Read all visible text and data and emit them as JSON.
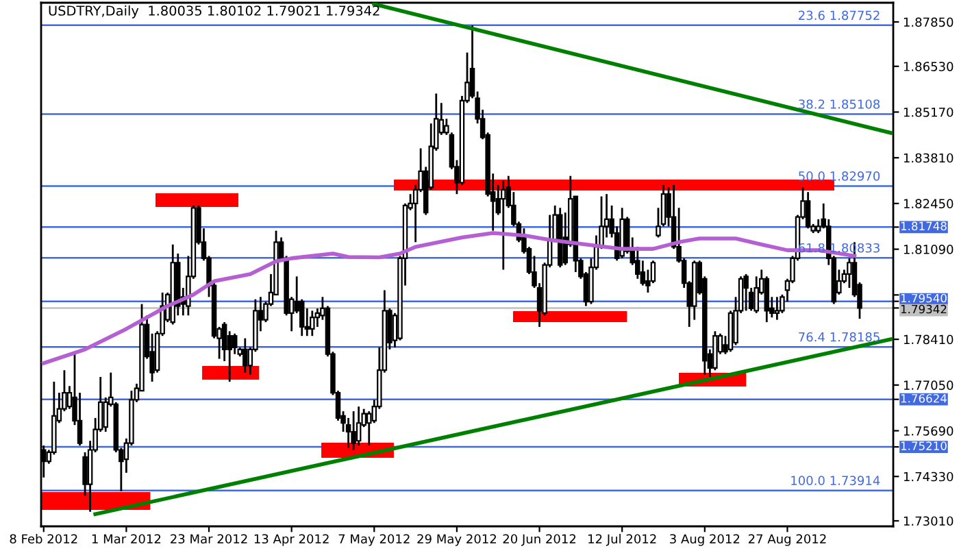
{
  "chart_data": {
    "type": "candlestick",
    "title": "USDTRY,Daily  1.80035 1.80102 1.79021 1.79342",
    "categories": [
      "8 Feb 2012",
      null,
      null,
      null,
      null,
      null,
      null,
      null,
      null,
      null,
      null,
      null,
      null,
      null,
      null,
      null,
      "1 Mar 2012",
      null,
      null,
      null,
      null,
      null,
      null,
      null,
      null,
      null,
      null,
      null,
      null,
      null,
      null,
      null,
      "23 Mar 2012",
      null,
      null,
      null,
      null,
      null,
      null,
      null,
      null,
      null,
      null,
      null,
      null,
      null,
      null,
      null,
      "13 Apr 2012",
      null,
      null,
      null,
      null,
      null,
      null,
      null,
      null,
      null,
      null,
      null,
      null,
      null,
      null,
      null,
      "7 May 2012",
      null,
      null,
      null,
      null,
      null,
      null,
      null,
      null,
      null,
      null,
      null,
      null,
      null,
      null,
      null,
      "29 May 2012",
      null,
      null,
      null,
      null,
      null,
      null,
      null,
      null,
      null,
      null,
      null,
      null,
      null,
      null,
      null,
      "20 Jun 2012",
      null,
      null,
      null,
      null,
      null,
      null,
      null,
      null,
      null,
      null,
      null,
      null,
      null,
      null,
      null,
      "12 Jul 2012",
      null,
      null,
      null,
      null,
      null,
      null,
      null,
      null,
      null,
      null,
      null,
      null,
      null,
      null,
      null,
      "3 Aug 2012",
      null,
      null,
      null,
      null,
      null,
      null,
      null,
      null,
      null,
      null,
      null,
      null,
      null,
      null,
      null,
      "27 Aug 2012",
      null,
      null,
      null,
      null,
      null,
      null,
      null,
      null,
      null,
      null,
      null,
      null,
      null,
      null,
      null,
      null,
      null,
      null,
      null,
      null
    ],
    "ohlc": [
      [
        1.7512,
        1.7525,
        1.743,
        1.7478
      ],
      [
        1.7478,
        1.7512,
        1.7471,
        1.7505
      ],
      [
        1.7505,
        1.7715,
        1.7498,
        1.7613
      ],
      [
        1.7599,
        1.7682,
        1.7592,
        1.7634
      ],
      [
        1.7634,
        1.7749,
        1.7627,
        1.7682
      ],
      [
        1.7641,
        1.7702,
        1.7634,
        1.7682
      ],
      [
        1.7668,
        1.7804,
        1.7586,
        1.7599
      ],
      [
        1.7599,
        1.7682,
        1.7525,
        1.7532
      ],
      [
        1.7491,
        1.7505,
        1.7376,
        1.741
      ],
      [
        1.741,
        1.7539,
        1.7328,
        1.7512
      ],
      [
        1.7512,
        1.7607,
        1.7505,
        1.7573
      ],
      [
        1.7573,
        1.7729,
        1.7566,
        1.7654
      ],
      [
        1.758,
        1.7668,
        1.7566,
        1.7654
      ],
      [
        1.7648,
        1.7742,
        1.7641,
        1.7668
      ],
      [
        1.7648,
        1.7654,
        1.7505,
        1.7512
      ],
      [
        1.7512,
        1.7518,
        1.7389,
        1.7478
      ],
      [
        1.7484,
        1.7546,
        1.7444,
        1.7532
      ],
      [
        1.7532,
        1.7688,
        1.7525,
        1.7661
      ],
      [
        1.7661,
        1.7709,
        1.7654,
        1.7695
      ],
      [
        1.7688,
        1.7946,
        1.7688,
        1.7885
      ],
      [
        1.7885,
        1.7912,
        1.7783,
        1.779
      ],
      [
        1.7804,
        1.7858,
        1.7715,
        1.7742
      ],
      [
        1.7749,
        1.7865,
        1.7742,
        1.7858
      ],
      [
        1.7858,
        1.798,
        1.7851,
        1.794
      ],
      [
        1.7899,
        1.798,
        1.7892,
        1.7974
      ],
      [
        1.7892,
        1.8123,
        1.7885,
        1.8069
      ],
      [
        1.8069,
        1.8096,
        1.7912,
        1.794
      ],
      [
        1.7967,
        1.7994,
        1.7912,
        1.7946
      ],
      [
        1.794,
        1.8089,
        1.7912,
        1.8028
      ],
      [
        1.8028,
        1.8239,
        1.8021,
        1.8232
      ],
      [
        1.8232,
        1.8239,
        1.8123,
        1.813
      ],
      [
        1.813,
        1.8171,
        1.8075,
        1.8082
      ],
      [
        1.8082,
        1.8089,
        1.7967,
        1.8001
      ],
      [
        1.8001,
        1.8008,
        1.7844,
        1.7851
      ],
      [
        1.7844,
        1.7878,
        1.7783,
        1.7872
      ],
      [
        1.7885,
        1.7892,
        1.7776,
        1.7811
      ],
      [
        1.7851,
        1.7865,
        1.7715,
        1.7811
      ],
      [
        1.7851,
        1.7858,
        1.7797,
        1.7817
      ],
      [
        1.7797,
        1.7817,
        1.779,
        1.7811
      ],
      [
        1.7811,
        1.7844,
        1.7742,
        1.7763
      ],
      [
        1.7763,
        1.7817,
        1.7736,
        1.7811
      ],
      [
        1.7811,
        1.796,
        1.7804,
        1.7926
      ],
      [
        1.7926,
        1.7967,
        1.7865,
        1.7899
      ],
      [
        1.7899,
        1.7953,
        1.7892,
        1.7946
      ],
      [
        1.7946,
        1.8035,
        1.794,
        1.798
      ],
      [
        1.7974,
        1.8164,
        1.7974,
        1.813
      ],
      [
        1.813,
        1.8144,
        1.8075,
        1.8082
      ],
      [
        1.8075,
        1.8089,
        1.7912,
        1.7919
      ],
      [
        1.7919,
        1.7967,
        1.7865,
        1.796
      ],
      [
        1.7953,
        1.8028,
        1.7919,
        1.7926
      ],
      [
        1.7953,
        1.796,
        1.7851,
        1.7878
      ],
      [
        1.7878,
        1.7933,
        1.7851,
        1.7872
      ],
      [
        1.7872,
        1.7926,
        1.7851,
        1.7906
      ],
      [
        1.7906,
        1.7933,
        1.7878,
        1.7919
      ],
      [
        1.7912,
        1.7967,
        1.7899,
        1.7933
      ],
      [
        1.7933,
        1.794,
        1.779,
        1.7797
      ],
      [
        1.7797,
        1.7804,
        1.7675,
        1.7682
      ],
      [
        1.7682,
        1.7688,
        1.7599,
        1.7607
      ],
      [
        1.7613,
        1.7627,
        1.7566,
        1.7592
      ],
      [
        1.7586,
        1.7607,
        1.7518,
        1.7566
      ],
      [
        1.7566,
        1.7627,
        1.7512,
        1.7532
      ],
      [
        1.7539,
        1.7641,
        1.7525,
        1.7592
      ],
      [
        1.7586,
        1.7634,
        1.758,
        1.762
      ],
      [
        1.7592,
        1.7627,
        1.7525,
        1.762
      ],
      [
        1.7599,
        1.7661,
        1.7592,
        1.7641
      ],
      [
        1.7641,
        1.7817,
        1.7634,
        1.7749
      ],
      [
        1.7749,
        1.7987,
        1.7742,
        1.7926
      ],
      [
        1.7926,
        1.7933,
        1.7811,
        1.7831
      ],
      [
        1.7838,
        1.7919,
        1.7817,
        1.7912
      ],
      [
        1.7844,
        1.8089,
        1.7838,
        1.8082
      ],
      [
        1.8082,
        1.8245,
        1.8001,
        1.8239
      ],
      [
        1.8232,
        1.8273,
        1.8225,
        1.8245
      ],
      [
        1.8245,
        1.83,
        1.813,
        1.8286
      ],
      [
        1.8286,
        1.8409,
        1.8279,
        1.8341
      ],
      [
        1.8341,
        1.8354,
        1.8211,
        1.8218
      ],
      [
        1.8293,
        1.8483,
        1.8286,
        1.8415
      ],
      [
        1.8409,
        1.8572,
        1.8402,
        1.8497
      ],
      [
        1.8456,
        1.8544,
        1.8449,
        1.8494
      ],
      [
        1.8456,
        1.8497,
        1.8449,
        1.8476
      ],
      [
        1.8449,
        1.8456,
        1.8347,
        1.8354
      ],
      [
        1.8354,
        1.8374,
        1.8273,
        1.8307
      ],
      [
        1.8307,
        1.8565,
        1.83,
        1.8551
      ],
      [
        1.8551,
        1.8694,
        1.8544,
        1.8605
      ],
      [
        1.8646,
        1.8775,
        1.8558,
        1.8565
      ],
      [
        1.8558,
        1.8578,
        1.8483,
        1.8497
      ],
      [
        1.8497,
        1.8524,
        1.8436,
        1.8442
      ],
      [
        1.8449,
        1.8456,
        1.8266,
        1.8273
      ],
      [
        1.8279,
        1.8334,
        1.8164,
        1.8252
      ],
      [
        1.8259,
        1.83,
        1.8211,
        1.8218
      ],
      [
        1.8259,
        1.8313,
        1.8048,
        1.8286
      ],
      [
        1.8293,
        1.8327,
        1.8232,
        1.8239
      ],
      [
        1.8239,
        1.8279,
        1.8177,
        1.8184
      ],
      [
        1.8184,
        1.8191,
        1.813,
        1.8137
      ],
      [
        1.8144,
        1.8171,
        1.8096,
        1.8103
      ],
      [
        1.811,
        1.8116,
        1.8035,
        1.8041
      ],
      [
        1.8041,
        1.8089,
        1.7994,
        1.8001
      ],
      [
        1.7994,
        1.8008,
        1.7878,
        1.7926
      ],
      [
        1.7919,
        1.8069,
        1.7912,
        1.8062
      ],
      [
        1.8062,
        1.8211,
        1.8055,
        1.8137
      ],
      [
        1.8137,
        1.8239,
        1.813,
        1.8211
      ],
      [
        1.8211,
        1.8232,
        1.8055,
        1.8062
      ],
      [
        1.8144,
        1.8218,
        1.8062,
        1.8069
      ],
      [
        1.8123,
        1.8327,
        1.8116,
        1.8259
      ],
      [
        1.8266,
        1.8266,
        1.8041,
        1.8075
      ],
      [
        1.8075,
        1.8082,
        1.8021,
        1.8028
      ],
      [
        1.8035,
        1.8041,
        1.794,
        1.7953
      ],
      [
        1.7953,
        1.8082,
        1.7946,
        1.8055
      ],
      [
        1.8055,
        1.815,
        1.8048,
        1.8116
      ],
      [
        1.8116,
        1.8266,
        1.811,
        1.8177
      ],
      [
        1.8177,
        1.8273,
        1.8144,
        1.8198
      ],
      [
        1.8198,
        1.8239,
        1.8144,
        1.8157
      ],
      [
        1.8157,
        1.8177,
        1.8075,
        1.8082
      ],
      [
        1.8089,
        1.8232,
        1.8082,
        1.8198
      ],
      [
        1.8198,
        1.8205,
        1.8096,
        1.8103
      ],
      [
        1.811,
        1.8144,
        1.8062,
        1.8069
      ],
      [
        1.8075,
        1.8116,
        1.8021,
        1.8035
      ],
      [
        1.8041,
        1.8075,
        1.8001,
        1.8008
      ],
      [
        1.8014,
        1.8048,
        1.798,
        1.8001
      ],
      [
        1.8014,
        1.8075,
        1.8008,
        1.8069
      ],
      [
        1.815,
        1.8232,
        1.8144,
        1.8177
      ],
      [
        1.8184,
        1.83,
        1.8177,
        1.8273
      ],
      [
        1.8273,
        1.8293,
        1.8177,
        1.8205
      ],
      [
        1.8205,
        1.83,
        1.811,
        1.8116
      ],
      [
        1.8116,
        1.8232,
        1.8069,
        1.8075
      ],
      [
        1.8075,
        1.8082,
        1.7994,
        1.8008
      ],
      [
        1.8008,
        1.8014,
        1.7878,
        1.794
      ],
      [
        1.794,
        1.8075,
        1.7899,
        1.8069
      ],
      [
        1.8069,
        1.8075,
        1.7974,
        1.798
      ],
      [
        1.8021,
        1.8028,
        1.7736,
        1.7777
      ],
      [
        1.7797,
        1.7811,
        1.7729,
        1.7756
      ],
      [
        1.7756,
        1.7865,
        1.7749,
        1.7851
      ],
      [
        1.7804,
        1.7858,
        1.7797,
        1.7851
      ],
      [
        1.7824,
        1.7851,
        1.7797,
        1.7804
      ],
      [
        1.7811,
        1.7926,
        1.7804,
        1.7919
      ],
      [
        1.7831,
        1.7967,
        1.7824,
        1.7926
      ],
      [
        1.7926,
        1.8028,
        1.7919,
        1.8021
      ],
      [
        1.8028,
        1.8035,
        1.7926,
        1.7994
      ],
      [
        1.798,
        1.7994,
        1.7926,
        1.7933
      ],
      [
        1.7926,
        1.8028,
        1.7919,
        1.7994
      ],
      [
        1.798,
        1.8048,
        1.7974,
        1.8021
      ],
      [
        1.8021,
        1.8028,
        1.7892,
        1.7926
      ],
      [
        1.7933,
        1.7967,
        1.7906,
        1.7919
      ],
      [
        1.7919,
        1.7967,
        1.7899,
        1.7926
      ],
      [
        1.7926,
        1.7974,
        1.7919,
        1.7967
      ],
      [
        1.7987,
        1.8021,
        1.7953,
        1.8014
      ],
      [
        1.8014,
        1.8089,
        1.8008,
        1.8082
      ],
      [
        1.8082,
        1.8211,
        1.8075,
        1.8205
      ],
      [
        1.8205,
        1.8293,
        1.8198,
        1.8252
      ],
      [
        1.8252,
        1.8279,
        1.8171,
        1.8177
      ],
      [
        1.8164,
        1.8184,
        1.8157,
        1.8177
      ],
      [
        1.8164,
        1.8198,
        1.8157,
        1.8177
      ],
      [
        1.8198,
        1.8245,
        1.8171,
        1.8177
      ],
      [
        1.8177,
        1.8198,
        1.8062,
        1.8082
      ],
      [
        1.8082,
        1.8089,
        1.7946,
        1.7953
      ],
      [
        1.798,
        1.8048,
        1.7974,
        1.8014
      ],
      [
        1.8014,
        1.8048,
        1.8008,
        1.8035
      ],
      [
        1.8035,
        1.8082,
        1.7994,
        1.8069
      ],
      [
        1.8069,
        1.813,
        1.7967,
        1.7974
      ],
      [
        1.80035,
        1.80102,
        1.79021,
        1.79342
      ],
      null,
      null,
      null,
      null,
      null,
      null
    ],
    "series": [
      {
        "type": "line",
        "color": "#b45fd2",
        "values": [
          1.777,
          null,
          null,
          null,
          null,
          null,
          null,
          null,
          1.7811,
          null,
          null,
          null,
          null,
          null,
          null,
          null,
          1.7872,
          null,
          null,
          null,
          null,
          null,
          null,
          null,
          1.794,
          null,
          null,
          null,
          null,
          1.7974,
          null,
          null,
          null,
          1.8014,
          null,
          null,
          null,
          null,
          null,
          null,
          1.8035,
          null,
          null,
          null,
          null,
          1.8073,
          null,
          null,
          1.8082,
          null,
          null,
          null,
          null,
          null,
          null,
          null,
          1.8096,
          null,
          null,
          1.8086,
          null,
          null,
          null,
          null,
          null,
          1.8085,
          null,
          null,
          null,
          1.8096,
          null,
          null,
          1.8116,
          null,
          null,
          null,
          null,
          null,
          null,
          null,
          null,
          1.8144,
          null,
          null,
          null,
          null,
          null,
          1.8157,
          null,
          null,
          null,
          null,
          null,
          1.815,
          null,
          null,
          null,
          null,
          1.8137,
          null,
          null,
          null,
          null,
          null,
          null,
          1.8123,
          null,
          null,
          null,
          null,
          null,
          null,
          1.811,
          null,
          null,
          null,
          null,
          null,
          1.811,
          null,
          null,
          null,
          null,
          1.813,
          null,
          null,
          null,
          1.8141,
          null,
          null,
          null,
          null,
          null,
          null,
          1.8141,
          null,
          null,
          null,
          null,
          1.8123,
          null,
          null,
          null,
          null,
          1.8106,
          null,
          null,
          null,
          null,
          null,
          1.8106,
          null,
          null,
          null,
          null,
          null,
          null,
          1.8089,
          null,
          null,
          null,
          null,
          null,
          null,
          null
        ]
      },
      {
        "type": "line",
        "color": "#008000",
        "values": [
          null,
          null,
          null,
          null,
          null,
          null,
          null,
          null,
          null,
          null,
          null,
          null,
          null,
          null,
          null,
          null,
          null,
          null,
          null,
          null,
          null,
          null,
          null,
          null,
          null,
          null,
          null,
          null,
          null,
          null,
          null,
          null,
          null,
          null,
          null,
          null,
          null,
          null,
          null,
          null,
          null,
          null,
          null,
          null,
          null,
          null,
          null,
          null,
          null,
          null,
          null,
          null,
          null,
          null,
          null,
          null,
          null,
          null,
          null,
          null,
          null,
          null,
          null,
          null,
          1.8838,
          null,
          null,
          null,
          null,
          null,
          null,
          null,
          null,
          null,
          null,
          null,
          null,
          null,
          null,
          null,
          null,
          null,
          null,
          null,
          null,
          null,
          null,
          null,
          null,
          null,
          null,
          null,
          null,
          null,
          null,
          null,
          null,
          null,
          null,
          null,
          null,
          null,
          null,
          null,
          null,
          null,
          null,
          null,
          null,
          null,
          null,
          null,
          null,
          null,
          null,
          null,
          null,
          null,
          null,
          null,
          null,
          null,
          null,
          null,
          null,
          null,
          null,
          null,
          null,
          null,
          null,
          null,
          null,
          null,
          null,
          null,
          null,
          null,
          null,
          null,
          null,
          null,
          null,
          null,
          null,
          null,
          null,
          null,
          null,
          null,
          null,
          null,
          null,
          null,
          null,
          null,
          null,
          null,
          null,
          null,
          null,
          null,
          null,
          null,
          1.8455
        ]
      },
      {
        "type": "line",
        "color": "#008000",
        "values": [
          null,
          null,
          null,
          null,
          null,
          null,
          null,
          null,
          null,
          null,
          1.7321,
          null,
          null,
          null,
          null,
          null,
          null,
          null,
          null,
          null,
          null,
          null,
          null,
          null,
          null,
          null,
          null,
          null,
          null,
          null,
          null,
          null,
          null,
          null,
          null,
          null,
          null,
          null,
          null,
          null,
          null,
          null,
          null,
          null,
          null,
          null,
          null,
          null,
          null,
          null,
          null,
          null,
          null,
          null,
          null,
          null,
          null,
          null,
          null,
          null,
          null,
          null,
          null,
          null,
          null,
          null,
          null,
          null,
          null,
          null,
          null,
          null,
          null,
          null,
          null,
          null,
          null,
          null,
          null,
          null,
          null,
          null,
          null,
          null,
          null,
          null,
          null,
          null,
          null,
          null,
          null,
          null,
          null,
          null,
          null,
          null,
          null,
          null,
          null,
          null,
          null,
          null,
          null,
          null,
          null,
          null,
          null,
          null,
          null,
          null,
          null,
          null,
          null,
          null,
          null,
          null,
          null,
          null,
          null,
          null,
          null,
          null,
          null,
          null,
          null,
          null,
          null,
          null,
          null,
          null,
          null,
          null,
          null,
          null,
          null,
          null,
          null,
          null,
          null,
          null,
          null,
          null,
          null,
          null,
          null,
          null,
          null,
          null,
          null,
          null,
          null,
          null,
          null,
          null,
          null,
          null,
          null,
          null,
          null,
          null,
          null,
          null,
          null,
          null,
          1.7841
        ]
      }
    ],
    "ylim": [
      1.72847,
      1.88421
    ],
    "yticks": [
      {
        "value": 1.8785,
        "label": "1.87850"
      },
      {
        "value": 1.8653,
        "label": "1.86530"
      },
      {
        "value": 1.8517,
        "label": "1.85170"
      },
      {
        "value": 1.8381,
        "label": "1.83810"
      },
      {
        "value": 1.8245,
        "label": "1.82450"
      },
      {
        "value": 1.81748,
        "label": "1.81748"
      },
      {
        "value": 1.8109,
        "label": "1.81090"
      },
      {
        "value": 1.7973,
        "label": null
      },
      {
        "value": 1.7954,
        "label": "1.79540"
      },
      {
        "value": 1.79342,
        "label": "1.79342"
      },
      {
        "value": 1.7841,
        "label": "1.78410"
      },
      {
        "value": 1.7705,
        "label": "1.77050"
      },
      {
        "value": 1.76624,
        "label": "1.76624"
      },
      {
        "value": 1.7569,
        "label": "1.75690"
      },
      {
        "value": 1.7521,
        "label": "1.75210"
      },
      {
        "value": 1.7433,
        "label": "1.74330"
      },
      {
        "value": 1.7301,
        "label": "1.73010"
      }
    ],
    "ref_lines": [
      {
        "axis": "y",
        "value": 1.87752,
        "label": "23.6 1.87752",
        "color": "#4169e1"
      },
      {
        "axis": "y",
        "value": 1.85108,
        "label": "38.2 1.85108",
        "color": "#4169e1"
      },
      {
        "axis": "y",
        "value": 1.8297,
        "label": "50.0 1.82970",
        "color": "#4169e1"
      },
      {
        "axis": "y",
        "value": 1.80833,
        "label": "61.8 1.80833",
        "color": "#4169e1"
      },
      {
        "axis": "y",
        "value": 1.78185,
        "label": "76.4 1.78185",
        "color": "#4169e1"
      },
      {
        "axis": "y",
        "value": 1.73914,
        "label": "100.0 1.73914",
        "color": "#4169e1"
      },
      {
        "axis": "y",
        "value": 1.81748,
        "color": "#4169e1"
      },
      {
        "axis": "y",
        "value": 1.7954,
        "color": "#4169e1"
      },
      {
        "axis": "y",
        "value": 1.79342,
        "color": "#c0c0c0"
      },
      {
        "axis": "y",
        "value": 1.76624,
        "color": "#4169e1"
      },
      {
        "axis": "y",
        "value": 1.7521,
        "color": "#4169e1"
      }
    ],
    "grid": false
  }
}
